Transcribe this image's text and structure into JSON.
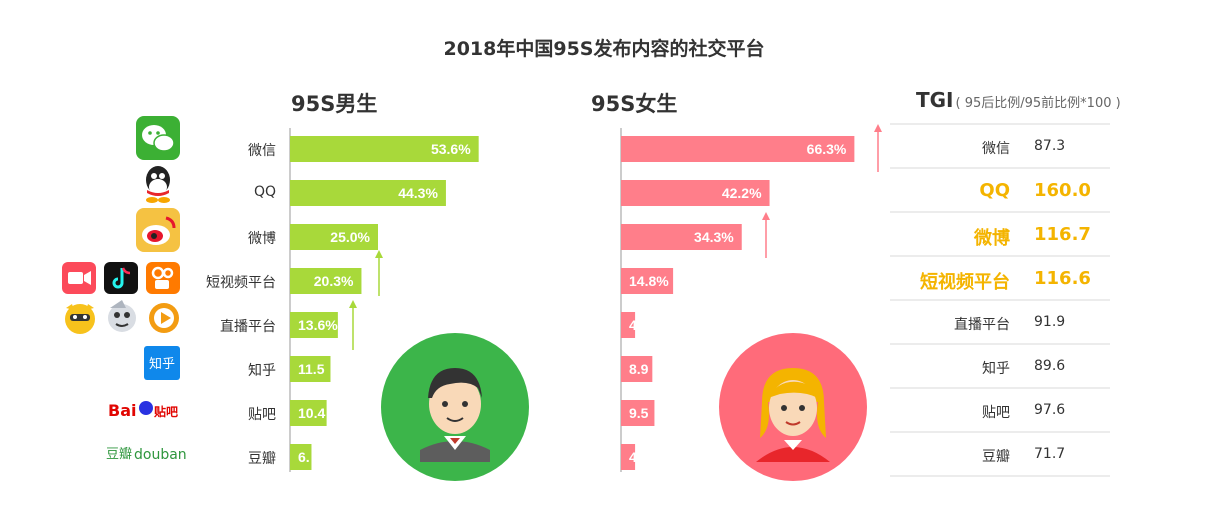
{
  "title": "2018年中国95S发布内容的社交平台",
  "chart_data": {
    "type": "bar",
    "categories": [
      "微信",
      "QQ",
      "微博",
      "短视频平台",
      "直播平台",
      "知乎",
      "贴吧",
      "豆瓣"
    ],
    "series": [
      {
        "name": "95S男生",
        "values": [
          53.6,
          44.3,
          25.0,
          20.3,
          13.6,
          11.5,
          10.4,
          6.1
        ],
        "labels": [
          "53.6%",
          "44.3%",
          "25.0%",
          "20.3%",
          "13.6%",
          "11.5",
          "10.4",
          "6."
        ],
        "color": "#a8d93a"
      },
      {
        "name": "95S女生",
        "values": [
          66.3,
          42.2,
          34.3,
          14.8,
          4.0,
          8.9,
          9.5,
          4.0
        ],
        "labels": [
          "66.3%",
          "42.2%",
          "34.3%",
          "14.8%",
          "4",
          "8.9",
          "9.5",
          "4"
        ],
        "color": "#ff7e8a"
      }
    ],
    "tgi": {
      "title": "TGI",
      "subtitle": "( 95后比例/95前比例*100 )",
      "values": [
        "87.3",
        "160.0",
        "116.7",
        "116.6",
        "91.9",
        "89.6",
        "97.6",
        "71.7"
      ],
      "highlight_color": "#f4b400"
    }
  },
  "icons": [
    "wechat-icon",
    "qq-icon",
    "weibo-icon",
    "video-icon",
    "douyin-icon",
    "kuaishou-icon",
    "huya-icon",
    "douyu-icon",
    "live-icon",
    "zhihu-icon",
    "baidu-tieba-icon",
    "douban-icon",
    "male-avatar-icon",
    "female-avatar-icon"
  ],
  "brand_text": {
    "zhihu": "知乎",
    "tieba": "Bai",
    "tieba2": "贴吧",
    "douban1": "豆瓣",
    "douban2": "douban"
  }
}
